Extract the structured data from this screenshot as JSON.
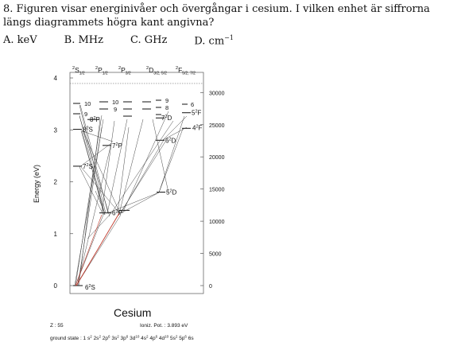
{
  "question": {
    "number": "8.",
    "text": "Figuren visar energinivåer och övergångar i cesium. I vilken enhet är siffrorna längs diagrammets högra kant angivna?"
  },
  "options": [
    {
      "letter": "A.",
      "text": "keV",
      "sup": ""
    },
    {
      "letter": "B.",
      "text": "MHz",
      "sup": ""
    },
    {
      "letter": "C.",
      "text": "GHz",
      "sup": ""
    },
    {
      "letter": "D.",
      "text": "cm",
      "sup": "−1"
    }
  ],
  "diagram": {
    "title": "Cesium",
    "ylabel": "Energy (eV)",
    "left_ticks": [
      "0",
      "1",
      "2",
      "3",
      "4"
    ],
    "right_ticks": [
      "0",
      "5000",
      "10000",
      "15000",
      "20000",
      "25000",
      "30000"
    ],
    "columns": [
      {
        "main": "S",
        "sup": "2",
        "sub": "1/2"
      },
      {
        "main": "P",
        "sup": "2",
        "sub": "1/2"
      },
      {
        "main": "P",
        "sup": "2",
        "sub": "3/2"
      },
      {
        "main": "D",
        "sup": "2",
        "sub": "3/2, 5/2"
      },
      {
        "main": "F",
        "sup": "2",
        "sub": "5/2, 7/2"
      }
    ],
    "levels": [
      {
        "label": "6",
        "sup": "2",
        "letter": "S"
      },
      {
        "label": "7",
        "sup": "2",
        "letter": "S"
      },
      {
        "label": "8",
        "sup": "2",
        "letter": "S"
      },
      {
        "label": "6",
        "sup": "2",
        "letter": "P"
      },
      {
        "label": "7",
        "sup": "2",
        "letter": "P"
      },
      {
        "label": "8",
        "sup": "2",
        "letter": "P"
      },
      {
        "label": "5",
        "sup": "2",
        "letter": "D"
      },
      {
        "label": "6",
        "sup": "2",
        "letter": "D"
      },
      {
        "label": "7",
        "sup": "2",
        "letter": "D"
      },
      {
        "label": "4",
        "sup": "2",
        "letter": "F"
      },
      {
        "label": "5",
        "sup": "2",
        "letter": "F"
      }
    ],
    "high_labels": [
      "10",
      "9",
      "10",
      "9",
      "9",
      "8",
      "6"
    ],
    "footer": {
      "z": "Z : 55",
      "ioniz": "Ioniz. Pot. : 3.893 eV",
      "ground_prefix": "ground state : 1",
      "ground_config": [
        {
          "t": "s",
          "s": "2"
        },
        {
          "t": "2s",
          "s": "2"
        },
        {
          "t": "2p",
          "s": "6"
        },
        {
          "t": "3s",
          "s": "2"
        },
        {
          "t": "3p",
          "s": "6"
        },
        {
          "t": "3d",
          "s": "10"
        },
        {
          "t": "4s",
          "s": "2"
        },
        {
          "t": "4p",
          "s": "6"
        },
        {
          "t": "4d",
          "s": "10"
        },
        {
          "t": "5s",
          "s": "2"
        },
        {
          "t": "5p",
          "s": "6"
        },
        {
          "t": "6s",
          "s": ""
        }
      ]
    },
    "colors": {
      "line": "#333333",
      "highlight": "#c0392b"
    }
  }
}
